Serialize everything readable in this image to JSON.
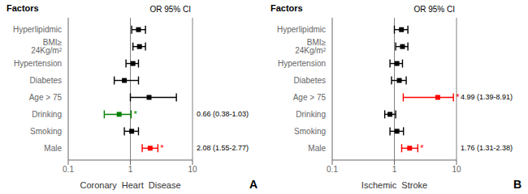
{
  "chart_data": [
    {
      "type": "forest",
      "x_label": "Coronary  Heart  Disease",
      "panel_label": "A",
      "y_header": "Factors",
      "value_header": "OR 95% CI",
      "categories": [
        "Hyperlipidmic",
        "BMI≥ 24Kg/m²",
        "Hypertension",
        "Diabetes",
        "Age > 75",
        "Drinking",
        "Smoking",
        "Male"
      ],
      "values": [
        1.35,
        1.4,
        1.1,
        0.8,
        2.0,
        0.66,
        1.05,
        2.08
      ],
      "ci_low": [
        1.05,
        1.1,
        0.85,
        0.55,
        1.0,
        0.38,
        0.8,
        1.55
      ],
      "ci_high": [
        1.75,
        1.75,
        1.35,
        1.35,
        5.5,
        1.03,
        1.35,
        2.77
      ],
      "colors": [
        "black",
        "black",
        "black",
        "black",
        "black",
        "green",
        "black",
        "red"
      ],
      "significance": {
        "text": "*",
        "categories": [
          "Drinking",
          "Male"
        ]
      },
      "annotations": [
        {
          "category": "Drinking",
          "text": "0.66 (0.38-1.03)"
        },
        {
          "category": "Male",
          "text": "2.08 (1.55-2.77)"
        }
      ],
      "log": "x",
      "xlim": [
        0.1,
        10
      ],
      "xticks": [
        0.1,
        1,
        10
      ],
      "reference_lines": [
        1,
        10
      ],
      "grid": false
    },
    {
      "type": "forest",
      "x_label": "Ischemic  Stroke",
      "panel_label": "B",
      "y_header": "Factors",
      "value_header": "OR 95% CI",
      "categories": [
        "Hyperlipidmic",
        "BMI≥ 24Kg/m²",
        "Hypertension",
        "Diabetes",
        "Age > 75",
        "Drinking",
        "Smoking",
        "Male"
      ],
      "values": [
        1.3,
        1.35,
        1.1,
        1.2,
        4.99,
        0.85,
        1.1,
        1.76
      ],
      "ci_low": [
        1.0,
        1.05,
        0.85,
        0.9,
        1.39,
        0.7,
        0.85,
        1.31
      ],
      "ci_high": [
        1.65,
        1.65,
        1.35,
        1.55,
        8.91,
        1.05,
        1.4,
        2.38
      ],
      "colors": [
        "black",
        "black",
        "black",
        "black",
        "red",
        "black",
        "black",
        "red"
      ],
      "significance": {
        "text": "*",
        "categories": [
          "Age > 75",
          "Male"
        ]
      },
      "annotations": [
        {
          "category": "Age > 75",
          "text": "4.99 (1.39-8.91)"
        },
        {
          "category": "Male",
          "text": "1.76 (1.31-2.38)"
        }
      ],
      "log": "x",
      "xlim": [
        0.1,
        10
      ],
      "xticks": [
        0.1,
        1,
        10
      ],
      "reference_lines": [
        1,
        10
      ],
      "grid": false
    }
  ]
}
